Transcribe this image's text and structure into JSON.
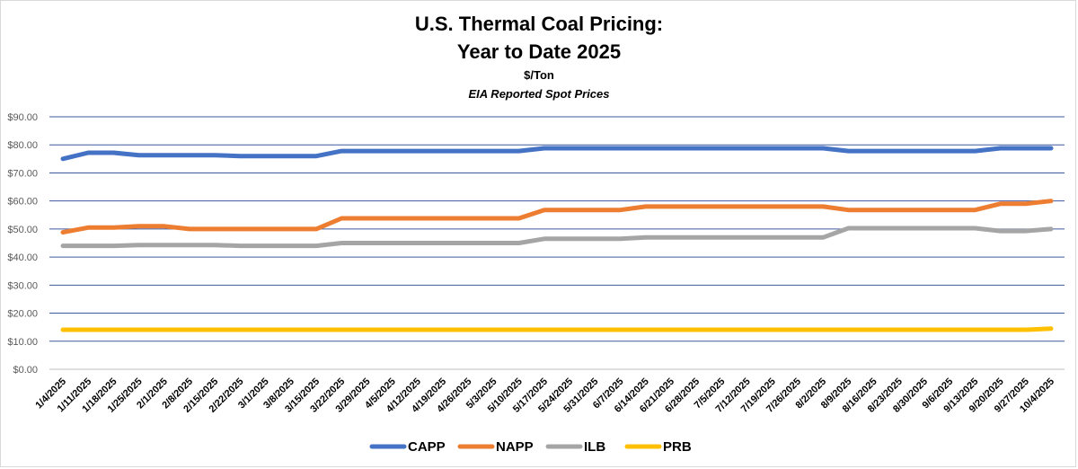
{
  "chart_data": {
    "type": "line",
    "title": "U.S. Thermal Coal Pricing:",
    "title_line2": "Year to Date 2025",
    "subtitle": "$/Ton",
    "subtitle2": "EIA Reported Spot Prices",
    "xlabel": "",
    "ylabel": "",
    "ylim": [
      0,
      90
    ],
    "yticks": [
      "$0.00",
      "$10.00",
      "$20.00",
      "$30.00",
      "$40.00",
      "$50.00",
      "$60.00",
      "$70.00",
      "$80.00",
      "$90.00"
    ],
    "grid": true,
    "legend_position": "bottom",
    "categories": [
      "1/4/2025",
      "1/11/2025",
      "1/18/2025",
      "1/25/2025",
      "2/1/2025",
      "2/8/2025",
      "2/15/2025",
      "2/22/2025",
      "3/1/2025",
      "3/8/2025",
      "3/15/2025",
      "3/22/2025",
      "3/29/2025",
      "4/5/2025",
      "4/12/2025",
      "4/19/2025",
      "4/26/2025",
      "5/3/2025",
      "5/10/2025",
      "5/17/2025",
      "5/24/2025",
      "5/31/2025",
      "6/7/2025",
      "6/14/2025",
      "6/21/2025",
      "6/28/2025",
      "7/5/2025",
      "7/12/2025",
      "7/19/2025",
      "7/26/2025",
      "8/2/2025",
      "8/9/2025",
      "8/16/2025",
      "8/23/2025",
      "8/30/2025",
      "9/6/2025",
      "9/13/2025",
      "9/20/2025",
      "9/27/2025",
      "10/4/2025"
    ],
    "series": [
      {
        "name": "CAPP",
        "color": "#4472c4",
        "values": [
          75.0,
          77.2,
          77.2,
          76.3,
          76.3,
          76.3,
          76.3,
          76.0,
          76.0,
          76.0,
          76.0,
          77.8,
          77.8,
          77.8,
          77.8,
          77.8,
          77.8,
          77.8,
          77.8,
          78.8,
          78.8,
          78.8,
          78.8,
          78.8,
          78.8,
          78.8,
          78.8,
          78.8,
          78.8,
          78.8,
          78.8,
          77.8,
          77.8,
          77.8,
          77.8,
          77.8,
          77.8,
          78.8,
          78.8,
          78.8
        ]
      },
      {
        "name": "NAPP",
        "color": "#ed7d31",
        "values": [
          48.8,
          50.5,
          50.5,
          51.0,
          51.0,
          50.0,
          50.0,
          50.0,
          50.0,
          50.0,
          50.0,
          53.8,
          53.8,
          53.8,
          53.8,
          53.8,
          53.8,
          53.8,
          53.8,
          56.8,
          56.8,
          56.8,
          56.8,
          58.0,
          58.0,
          58.0,
          58.0,
          58.0,
          58.0,
          58.0,
          58.0,
          56.8,
          56.8,
          56.8,
          56.8,
          56.8,
          56.8,
          59.0,
          59.0,
          60.0
        ]
      },
      {
        "name": "ILB",
        "color": "#a5a5a5",
        "values": [
          44.0,
          44.0,
          44.0,
          44.3,
          44.3,
          44.3,
          44.3,
          44.0,
          44.0,
          44.0,
          44.0,
          45.0,
          45.0,
          45.0,
          45.0,
          45.0,
          45.0,
          45.0,
          45.0,
          46.5,
          46.5,
          46.5,
          46.5,
          47.0,
          47.0,
          47.0,
          47.0,
          47.0,
          47.0,
          47.0,
          47.0,
          50.3,
          50.3,
          50.3,
          50.3,
          50.3,
          50.3,
          49.3,
          49.3,
          50.0
        ]
      },
      {
        "name": "PRB",
        "color": "#ffc000",
        "values": [
          14.1,
          14.1,
          14.1,
          14.1,
          14.1,
          14.1,
          14.1,
          14.1,
          14.1,
          14.1,
          14.1,
          14.1,
          14.1,
          14.1,
          14.1,
          14.1,
          14.1,
          14.1,
          14.1,
          14.1,
          14.1,
          14.1,
          14.1,
          14.1,
          14.1,
          14.1,
          14.1,
          14.1,
          14.1,
          14.1,
          14.1,
          14.1,
          14.1,
          14.1,
          14.1,
          14.1,
          14.1,
          14.1,
          14.1,
          14.5
        ]
      }
    ]
  }
}
